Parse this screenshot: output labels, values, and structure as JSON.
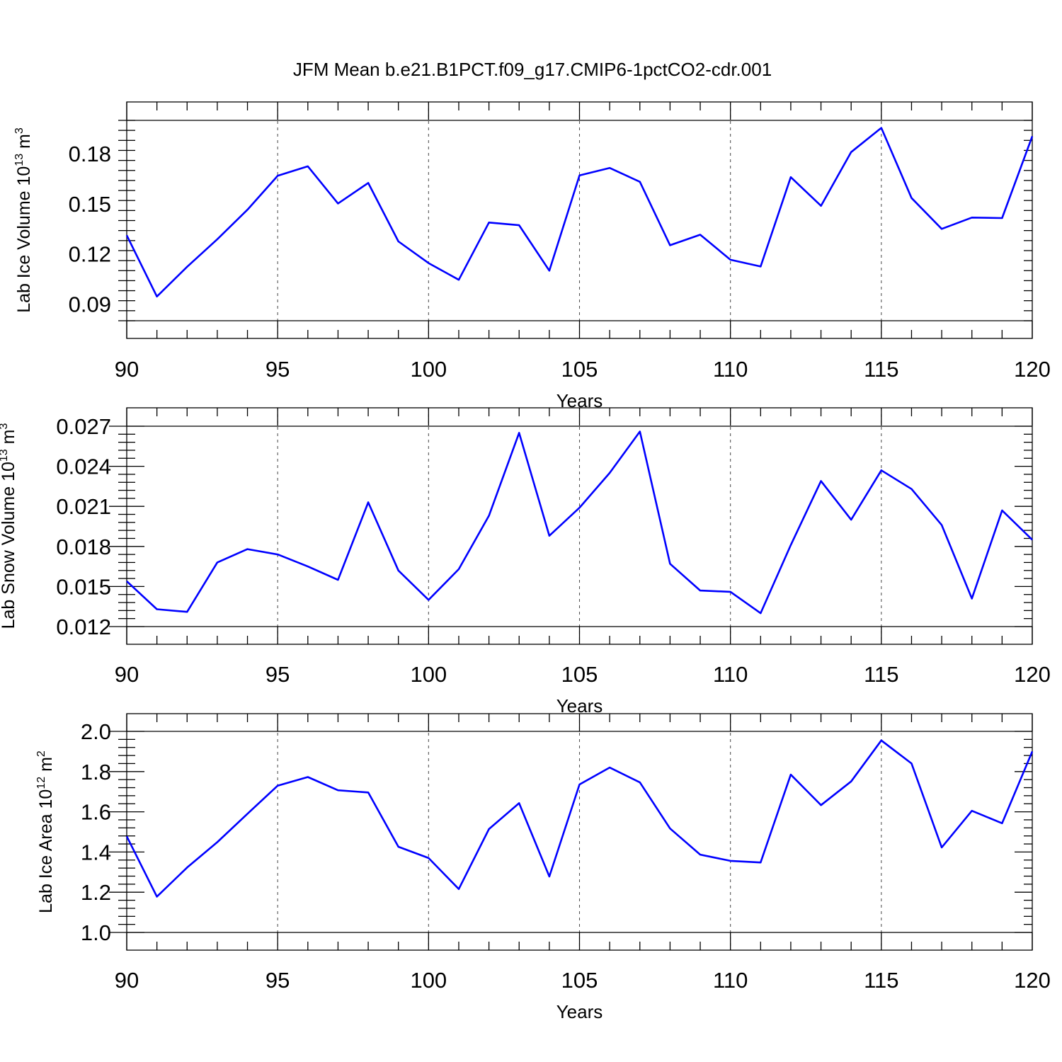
{
  "colors": {
    "series": "#0000ff",
    "axis": "#000000",
    "grid": "#555555"
  },
  "title": "JFM Mean b.e21.B1PCT.f09_g17.CMIP6-1pctCO2-cdr.001",
  "chart_data": [
    {
      "type": "line",
      "x": [
        90,
        91,
        92,
        93,
        94,
        95,
        96,
        97,
        98,
        99,
        100,
        101,
        102,
        103,
        104,
        105,
        106,
        107,
        108,
        109,
        110,
        111,
        112,
        113,
        114,
        115,
        116,
        117,
        118,
        119,
        120
      ],
      "values": [
        0.1312,
        0.0945,
        0.1123,
        0.1288,
        0.1465,
        0.1668,
        0.1725,
        0.1502,
        0.1625,
        0.1275,
        0.1145,
        0.1045,
        0.1388,
        0.1372,
        0.11,
        0.167,
        0.1715,
        0.1632,
        0.1252,
        0.1315,
        0.1165,
        0.1125,
        0.166,
        0.1488,
        0.181,
        0.1955,
        0.1535,
        0.135,
        0.1418,
        0.1415,
        0.1905
      ],
      "xlabel": "Years",
      "ylabel": {
        "text": "Lab Ice Volume 10",
        "exp": "13",
        "unit": " m",
        "unit_exp": "3"
      },
      "xlim": [
        90,
        120
      ],
      "ylim": [
        0.08,
        0.2
      ]
    },
    {
      "type": "line",
      "x": [
        90,
        91,
        92,
        93,
        94,
        95,
        96,
        97,
        98,
        99,
        100,
        101,
        102,
        103,
        104,
        105,
        106,
        107,
        108,
        109,
        110,
        111,
        112,
        113,
        114,
        115,
        116,
        117,
        118,
        119,
        120
      ],
      "values": [
        0.0154,
        0.0133,
        0.0131,
        0.0168,
        0.0178,
        0.0174,
        0.0165,
        0.0155,
        0.0213,
        0.0162,
        0.014,
        0.0163,
        0.0203,
        0.0265,
        0.0188,
        0.0209,
        0.0235,
        0.0266,
        0.0167,
        0.0147,
        0.0146,
        0.013,
        0.0181,
        0.0229,
        0.02,
        0.0237,
        0.0223,
        0.0196,
        0.0141,
        0.0207,
        0.0185
      ],
      "xlabel": "Years",
      "ylabel": {
        "text": "Lab Snow Volume 10",
        "exp": "13",
        "unit": " m",
        "unit_exp": "3"
      },
      "xlim": [
        90,
        120
      ],
      "ylim": [
        0.012,
        0.027
      ]
    },
    {
      "type": "line",
      "x": [
        90,
        91,
        92,
        93,
        94,
        95,
        96,
        97,
        98,
        99,
        100,
        101,
        102,
        103,
        104,
        105,
        106,
        107,
        108,
        109,
        110,
        111,
        112,
        113,
        114,
        115,
        116,
        117,
        118,
        119,
        120
      ],
      "values": [
        1.478,
        1.178,
        1.323,
        1.449,
        1.59,
        1.73,
        1.773,
        1.707,
        1.696,
        1.426,
        1.37,
        1.216,
        1.514,
        1.643,
        1.278,
        1.736,
        1.82,
        1.746,
        1.517,
        1.387,
        1.356,
        1.348,
        1.785,
        1.633,
        1.751,
        1.955,
        1.84,
        1.423,
        1.605,
        1.543,
        1.9
      ],
      "xlabel": "Years",
      "ylabel": {
        "text": "Lab Ice Area 10",
        "exp": "12",
        "unit": " m",
        "unit_exp": "2"
      },
      "xlim": [
        90,
        120
      ],
      "ylim": [
        1.0,
        2.0
      ]
    }
  ],
  "xticks": {
    "major": [
      "90",
      "95",
      "100",
      "105",
      "110",
      "115",
      "120"
    ]
  },
  "yticks": [
    [
      "0.09",
      "0.12",
      "0.15",
      "0.18"
    ],
    [
      "0.012",
      "0.015",
      "0.018",
      "0.021",
      "0.024",
      "0.027"
    ],
    [
      "1.0",
      "1.2",
      "1.4",
      "1.6",
      "1.8",
      "2.0"
    ]
  ]
}
